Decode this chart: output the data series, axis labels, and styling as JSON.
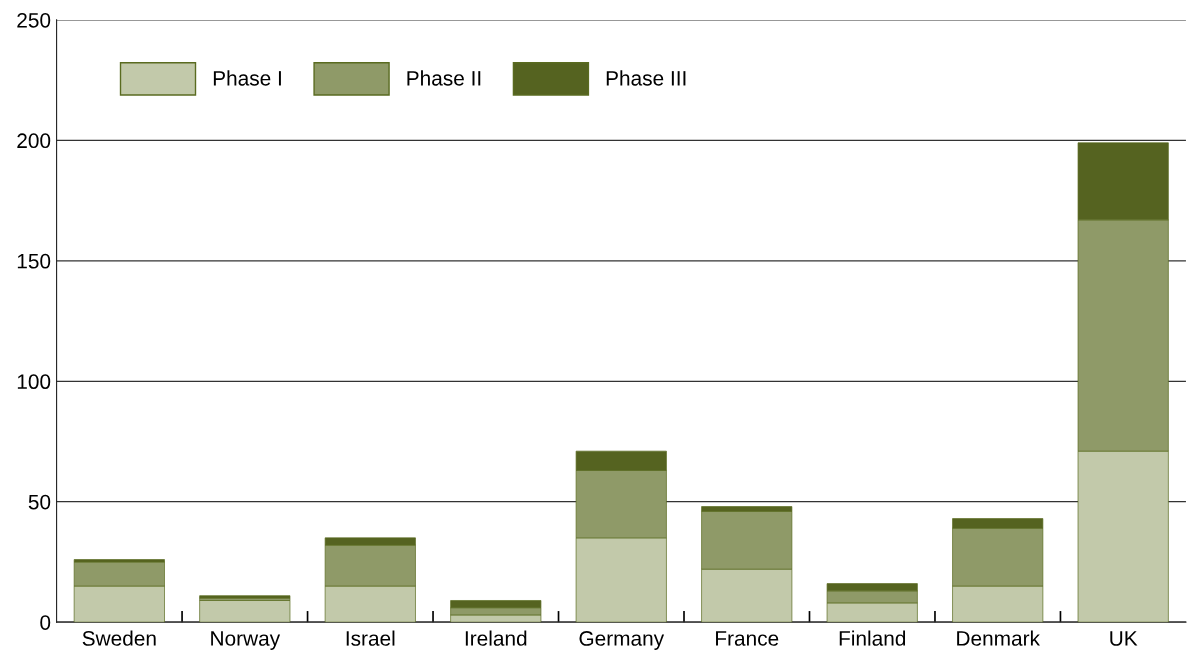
{
  "chart_data": {
    "type": "bar",
    "stacked": true,
    "categories": [
      "Sweden",
      "Norway",
      "Israel",
      "Ireland",
      "Germany",
      "France",
      "Finland",
      "Denmark",
      "UK"
    ],
    "series": [
      {
        "name": "Phase I",
        "color": "#c2c9aa",
        "values": [
          15,
          9,
          15,
          3,
          35,
          22,
          8,
          15,
          71
        ]
      },
      {
        "name": "Phase II",
        "color": "#8f9a68",
        "values": [
          10,
          1,
          17,
          3,
          28,
          24,
          5,
          24,
          96
        ]
      },
      {
        "name": "Phase III",
        "color": "#556320",
        "values": [
          1,
          1,
          3,
          3,
          8,
          2,
          3,
          4,
          32
        ]
      }
    ],
    "ylim": [
      0,
      250
    ],
    "yticks": [
      0,
      50,
      100,
      150,
      200,
      250
    ],
    "grid": "y",
    "legend": "top left"
  }
}
